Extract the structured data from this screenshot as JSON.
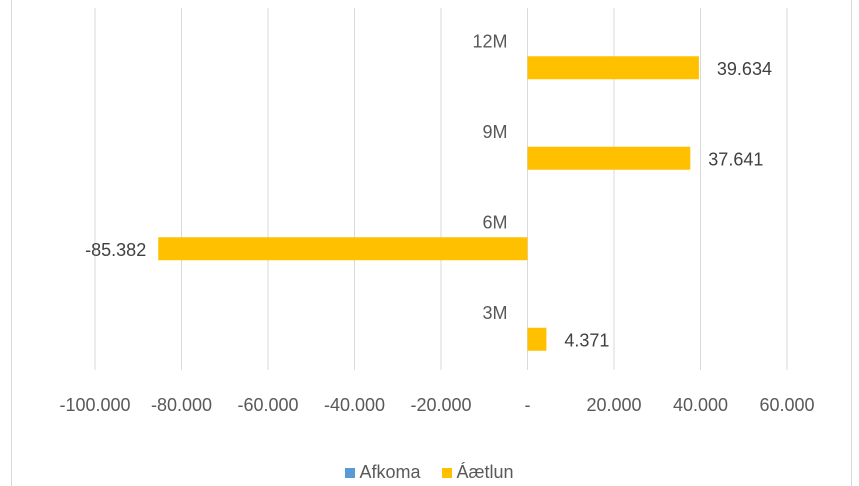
{
  "chart_data": {
    "type": "bar",
    "orientation": "horizontal",
    "categories": [
      "3M",
      "6M",
      "9M",
      "12M"
    ],
    "series": [
      {
        "name": "Afkoma",
        "values": [
          null,
          null,
          null,
          null
        ],
        "color": "#5B9BD5"
      },
      {
        "name": "Áætlun",
        "values": [
          4371,
          -85382,
          37641,
          39634
        ],
        "color": "#FFC000"
      }
    ],
    "data_labels": [
      "4.371",
      "-85.382",
      "37.641",
      "39.634"
    ],
    "x_ticks": [
      {
        "value": -100000,
        "label": "-100.000"
      },
      {
        "value": -80000,
        "label": "-80.000"
      },
      {
        "value": -60000,
        "label": "-60.000"
      },
      {
        "value": -40000,
        "label": "-40.000"
      },
      {
        "value": -20000,
        "label": "-20.000"
      },
      {
        "value": 0,
        "label": "-"
      },
      {
        "value": 20000,
        "label": "20.000"
      },
      {
        "value": 40000,
        "label": "40.000"
      },
      {
        "value": 60000,
        "label": "60.000"
      }
    ],
    "xlim": [
      -100000,
      60000
    ],
    "title": "",
    "xlabel": "",
    "ylabel": "",
    "grid": true,
    "legend_position": "bottom"
  }
}
